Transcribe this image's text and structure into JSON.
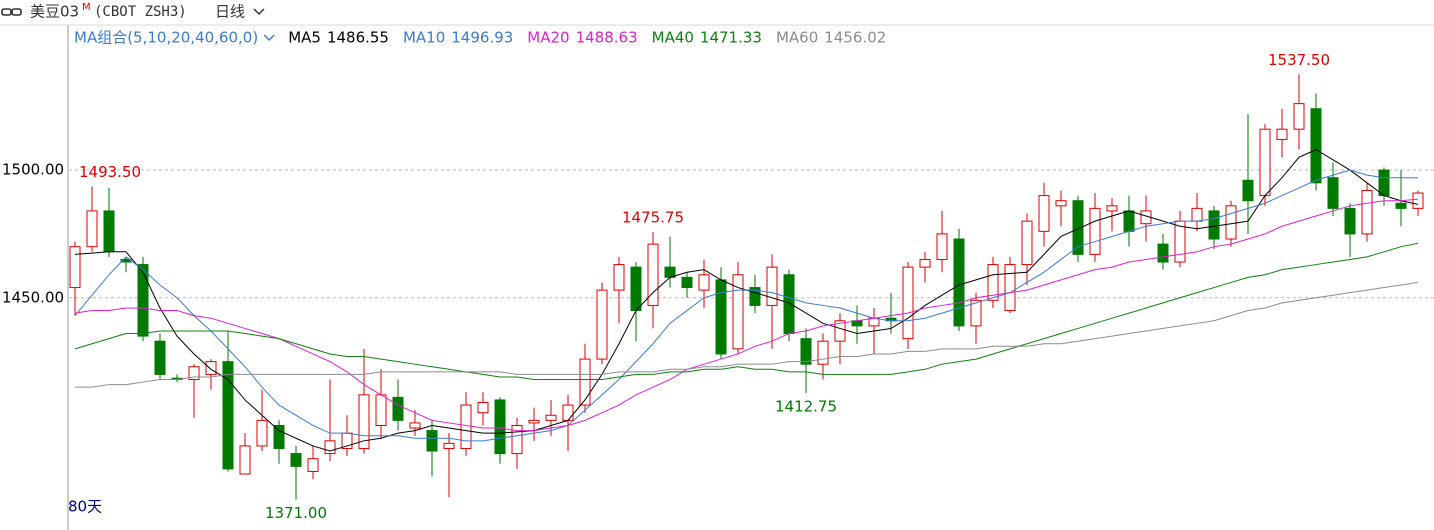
{
  "header": {
    "symbol": "美豆03",
    "flag": "M",
    "code": "(CBOT ZSH3)",
    "period": "日线"
  },
  "chart_data": {
    "type": "candlestick",
    "indicator": "MA组合(5,10,20,40,60,0)",
    "span": "80天",
    "up_color": "#e00000",
    "down_color": "#007a00",
    "ylim": [
      1363,
      1547
    ],
    "yticks": [
      {
        "value": 1450,
        "label": "1450.00"
      },
      {
        "value": 1500,
        "label": "1500.00"
      }
    ],
    "grid": true,
    "open": [
      1454,
      1470,
      1484,
      1465,
      1463,
      1433,
      1418.5,
      1418,
      1420,
      1425,
      1381,
      1392,
      1400,
      1389,
      1382,
      1389,
      1391,
      1391,
      1400,
      1411,
      1399,
      1398,
      1391,
      1391,
      1405,
      1410,
      1389,
      1401,
      1402,
      1402,
      1408,
      1426,
      1453,
      1462,
      1447,
      1462,
      1458,
      1453,
      1457,
      1430,
      1454,
      1447,
      1459,
      1434,
      1424,
      1433,
      1441,
      1439,
      1442,
      1434,
      1462,
      1465,
      1473,
      1439,
      1449,
      1445,
      1463,
      1476,
      1486,
      1488,
      1467,
      1484,
      1484,
      1479,
      1471,
      1464,
      1480,
      1484,
      1473,
      1496,
      1490,
      1512,
      1516,
      1524,
      1497,
      1485,
      1475,
      1500,
      1487,
      1485
    ],
    "high": [
      1472,
      1493.5,
      1493,
      1466,
      1466,
      1436,
      1420,
      1424,
      1426,
      1437,
      1397,
      1414,
      1402,
      1392,
      1392,
      1418,
      1404,
      1430,
      1422,
      1418,
      1406,
      1402,
      1397,
      1413,
      1413,
      1411,
      1403,
      1407,
      1410,
      1412,
      1432,
      1456,
      1466,
      1464,
      1475.75,
      1474,
      1460,
      1465,
      1462,
      1464,
      1459,
      1467,
      1461,
      1438,
      1436,
      1444,
      1447,
      1446,
      1452,
      1464,
      1468,
      1484,
      1477,
      1452,
      1466,
      1466,
      1483,
      1495,
      1492,
      1490,
      1491,
      1489,
      1490,
      1490,
      1475,
      1484,
      1491,
      1486,
      1488,
      1522,
      1518,
      1524,
      1537.5,
      1530,
      1503,
      1487,
      1495,
      1501,
      1500,
      1492
    ],
    "low": [
      1443,
      1468,
      1466,
      1460,
      1433,
      1418,
      1417,
      1403,
      1414,
      1382,
      1381,
      1390,
      1385,
      1371,
      1379,
      1386,
      1388,
      1389,
      1395,
      1398,
      1396,
      1380,
      1372,
      1388,
      1400,
      1385,
      1383,
      1394,
      1396,
      1390,
      1405,
      1424,
      1440,
      1433,
      1438,
      1454,
      1450,
      1446,
      1426,
      1428,
      1444,
      1430,
      1433,
      1412.75,
      1418,
      1424,
      1432,
      1428,
      1436,
      1430,
      1456,
      1460,
      1437,
      1432,
      1446,
      1444,
      1455,
      1470,
      1478,
      1464,
      1464,
      1476,
      1470,
      1472,
      1461,
      1462,
      1476,
      1469,
      1470,
      1475,
      1486,
      1505,
      1508,
      1492,
      1482,
      1466,
      1472,
      1486,
      1478,
      1482
    ],
    "close": [
      1470,
      1484,
      1468,
      1464,
      1435,
      1420,
      1418,
      1423,
      1425,
      1383,
      1392,
      1402,
      1391,
      1384,
      1387,
      1394,
      1397,
      1412,
      1412,
      1402,
      1401,
      1390,
      1393,
      1408,
      1409,
      1389,
      1400,
      1402,
      1404,
      1408,
      1426,
      1453,
      1463,
      1445,
      1471,
      1458,
      1454,
      1459,
      1428,
      1459,
      1447,
      1462,
      1436,
      1424,
      1433,
      1441,
      1439,
      1442,
      1441,
      1462,
      1465,
      1475,
      1439,
      1449,
      1463,
      1463,
      1480,
      1490,
      1488,
      1467,
      1485,
      1486,
      1476,
      1484,
      1464,
      1480,
      1485,
      1473,
      1486,
      1488,
      1516,
      1516,
      1526,
      1495,
      1485,
      1475,
      1492,
      1490,
      1485,
      1491
    ],
    "annotations": [
      {
        "value": 1493.5,
        "label": "1493.50"
      },
      {
        "value": 1371,
        "label": "1371.00"
      },
      {
        "value": 1475.75,
        "label": "1475.75"
      },
      {
        "value": 1412.75,
        "label": "1412.75"
      },
      {
        "value": 1537.5,
        "label": "1537.50"
      }
    ],
    "series": [
      {
        "name": "MA5",
        "color": "#000000",
        "values": [
          1467,
          1467.5,
          1468,
          1468,
          1460,
          1446,
          1435,
          1428,
          1422,
          1418,
          1410,
          1404,
          1398,
          1395,
          1392,
          1390,
          1392,
          1394,
          1395,
          1397,
          1398,
          1400,
          1399,
          1398,
          1397,
          1397,
          1397.5,
          1398,
          1400,
          1402,
          1410,
          1420,
          1432,
          1445,
          1452,
          1458,
          1460,
          1461,
          1457,
          1454,
          1452,
          1450,
          1448,
          1444,
          1440,
          1438,
          1436,
          1437,
          1438,
          1442,
          1447,
          1451,
          1455,
          1457,
          1459,
          1459.5,
          1460,
          1467,
          1474,
          1477,
          1480,
          1482,
          1484,
          1482,
          1480,
          1478,
          1477,
          1478,
          1479,
          1480,
          1490,
          1497,
          1505,
          1508,
          1504,
          1500,
          1495,
          1490,
          1488,
          1486.55
        ]
      },
      {
        "name": "MA10",
        "color": "#3a7bd5",
        "values": [
          1443,
          1451,
          1459,
          1466,
          1461,
          1455,
          1450,
          1443,
          1437,
          1430,
          1423,
          1415,
          1408,
          1404,
          1400,
          1397,
          1397,
          1396,
          1396,
          1396,
          1395,
          1395,
          1395,
          1394,
          1394,
          1395,
          1396,
          1397,
          1398,
          1400,
          1406,
          1412,
          1418,
          1425,
          1432,
          1440,
          1445,
          1450,
          1452,
          1453,
          1453,
          1452,
          1450,
          1448,
          1447,
          1446,
          1444,
          1442,
          1441,
          1441,
          1442,
          1444,
          1446,
          1448,
          1450,
          1452,
          1456,
          1460,
          1465,
          1470,
          1472,
          1474,
          1476,
          1478,
          1479,
          1480,
          1480,
          1481,
          1483,
          1485,
          1487,
          1490,
          1493,
          1496,
          1498,
          1500,
          1498,
          1497,
          1497,
          1496.93
        ]
      },
      {
        "name": "MA20",
        "color": "#e020d0",
        "values": [
          1444,
          1445,
          1445,
          1446,
          1446,
          1445,
          1445,
          1443,
          1442,
          1440,
          1438,
          1436,
          1434,
          1431,
          1428,
          1425,
          1421,
          1416,
          1412,
          1408,
          1405,
          1402,
          1401,
          1400,
          1399,
          1399,
          1398,
          1398,
          1399,
          1400,
          1402,
          1405,
          1408,
          1412,
          1415,
          1418,
          1422,
          1424,
          1426,
          1428,
          1431,
          1433,
          1436,
          1437,
          1439,
          1440,
          1441,
          1442,
          1443,
          1444,
          1446,
          1447,
          1448,
          1450,
          1451,
          1452,
          1453,
          1455,
          1457,
          1459,
          1461,
          1462,
          1464,
          1465,
          1466,
          1467,
          1468,
          1470,
          1471,
          1473,
          1475,
          1478,
          1480,
          1482,
          1484,
          1486,
          1487,
          1488,
          1488,
          1488.63
        ]
      },
      {
        "name": "MA40",
        "color": "#108010",
        "values": [
          1430,
          1432,
          1434,
          1436,
          1436,
          1437,
          1437,
          1437,
          1437,
          1437,
          1436,
          1435,
          1434,
          1432,
          1430,
          1428,
          1427,
          1427,
          1426,
          1425,
          1424,
          1423,
          1422,
          1421,
          1420,
          1419,
          1419,
          1418,
          1418,
          1418,
          1418,
          1418,
          1419,
          1420,
          1420,
          1421,
          1421,
          1422,
          1422,
          1423,
          1422,
          1422,
          1421,
          1421,
          1420,
          1420,
          1420,
          1420,
          1420,
          1421,
          1422,
          1424,
          1425,
          1426,
          1428,
          1430,
          1432,
          1434,
          1436,
          1438,
          1440,
          1442,
          1444,
          1446,
          1448,
          1450,
          1452,
          1454,
          1456,
          1458,
          1459,
          1461,
          1462,
          1463,
          1464,
          1465,
          1466,
          1468,
          1470,
          1471.33
        ]
      },
      {
        "name": "MA60",
        "color": "#8c8c8c",
        "values": [
          1415,
          1415,
          1416,
          1416,
          1417,
          1418,
          1418,
          1419,
          1419,
          1420,
          1420,
          1420,
          1420,
          1420,
          1420,
          1420,
          1420,
          1420,
          1421,
          1421,
          1421,
          1421,
          1421,
          1421,
          1421,
          1421,
          1420,
          1420,
          1420,
          1420,
          1420,
          1420,
          1421,
          1421,
          1421,
          1422,
          1422,
          1423,
          1423,
          1424,
          1424,
          1424,
          1425,
          1425,
          1426,
          1427,
          1427,
          1428,
          1428,
          1429,
          1429,
          1430,
          1430,
          1430,
          1431,
          1431,
          1431,
          1432,
          1432,
          1433,
          1434,
          1435,
          1436,
          1437,
          1438,
          1439,
          1440,
          1441,
          1443,
          1445,
          1446,
          1448,
          1449,
          1450,
          1451,
          1452,
          1453,
          1454,
          1455,
          1456.02
        ]
      }
    ]
  }
}
